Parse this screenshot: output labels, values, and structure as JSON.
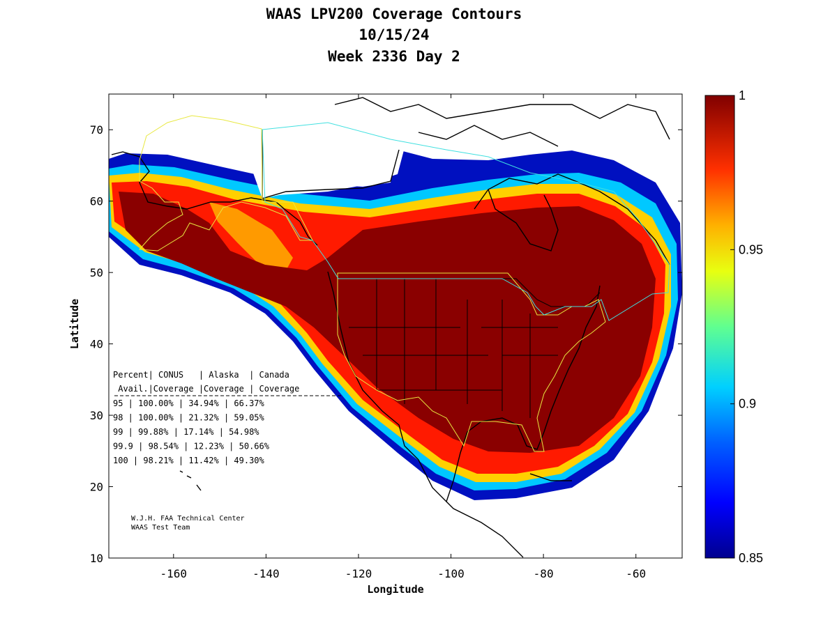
{
  "title": {
    "line1": "WAAS LPV200 Coverage Contours",
    "line2": "10/15/24",
    "line3": "Week 2336 Day 2"
  },
  "axes": {
    "xlabel": "Longitude",
    "ylabel": "Latitude",
    "xlim": [
      -174,
      -50
    ],
    "ylim": [
      10,
      75
    ],
    "xticks": [
      -160,
      -140,
      -120,
      -100,
      -80,
      -60
    ],
    "yticks": [
      10,
      20,
      30,
      40,
      50,
      60,
      70
    ],
    "xtick_labels": [
      "-160",
      "-140",
      "-120",
      "-100",
      "-80",
      "-60"
    ],
    "ytick_labels": [
      "10",
      "20",
      "30",
      "40",
      "50",
      "60",
      "70"
    ]
  },
  "colorbar": {
    "range": [
      0.85,
      1.0
    ],
    "ticks": [
      0.85,
      0.9,
      0.95,
      1.0
    ],
    "tick_labels": [
      "0.85",
      "0.9",
      "0.95",
      "1"
    ],
    "colormap": "jet",
    "colors": [
      "#00008f",
      "#0000ff",
      "#0080ff",
      "#00ffff",
      "#80ff80",
      "#ffff00",
      "#ff8000",
      "#ff0000",
      "#800000"
    ]
  },
  "stats_table": {
    "header1": "Percent| CONUS   | Alaska  | Canada",
    "header2": " Avail.|Coverage |Coverage | Coverage",
    "separator": "----------------------------------------",
    "rows": [
      "  95   | 100.00%  | 34.94% | 66.37%",
      "  98   | 100.00%  | 21.32% | 59.05%",
      "  99   | 99.88%   | 17.14% | 54.98%",
      "99.9   | 98.54%   | 12.23% | 50.66%",
      " 100   | 98.21%   | 11.42% | 49.30%"
    ]
  },
  "credit": {
    "line1": "W.J.H. FAA Technical Center",
    "line2": "WAAS Test Team"
  },
  "map_colors": {
    "coast": "#000000",
    "conus_boundary": "#e8e840",
    "alaska_boundary": "#e8e840",
    "canada_boundary": "#40e0e0"
  }
}
